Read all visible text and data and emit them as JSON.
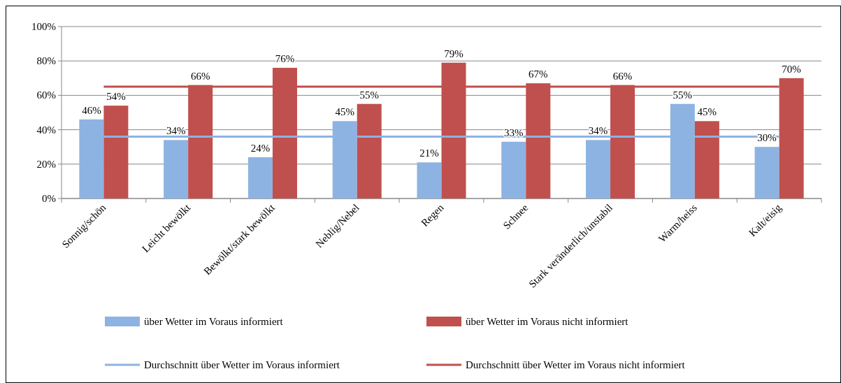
{
  "chart_data": {
    "type": "bar",
    "categories": [
      "Sonnig/schön",
      "Leicht bewölkt",
      "Bewölkt/stark bewölkt",
      "Neblig/Nebel",
      "Regen",
      "Schnee",
      "Stark veränderlich/unstabil",
      "Warm/heiss",
      "Kalt/eisig"
    ],
    "series": [
      {
        "name": "über Wetter im Voraus informiert",
        "color": "#8db3e2",
        "values": [
          46,
          34,
          24,
          45,
          21,
          33,
          34,
          55,
          30
        ],
        "value_labels": [
          "46%",
          "34%",
          "24%",
          "45%",
          "21%",
          "33%",
          "34%",
          "55%",
          "30%"
        ]
      },
      {
        "name": "über Wetter im Voraus nicht informiert",
        "color": "#c0504d",
        "values": [
          54,
          66,
          76,
          55,
          79,
          67,
          66,
          45,
          70
        ],
        "value_labels": [
          "54%",
          "66%",
          "76%",
          "55%",
          "79%",
          "67%",
          "66%",
          "45%",
          "70%"
        ]
      },
      {
        "name": "Durchschnitt über Wetter im Voraus informiert",
        "type": "line",
        "color": "#8db3e2",
        "values": [
          36,
          36,
          36,
          36,
          36,
          36,
          36,
          36,
          36
        ]
      },
      {
        "name": "Durchschnitt über Wetter im Voraus nicht informiert",
        "type": "line",
        "color": "#c0504d",
        "values": [
          65,
          65,
          65,
          65,
          65,
          65,
          65,
          65,
          65
        ]
      }
    ],
    "ylim": [
      0,
      100
    ],
    "yticks": [
      {
        "value": 0,
        "label": "0%"
      },
      {
        "value": 20,
        "label": "20%"
      },
      {
        "value": 40,
        "label": "40%"
      },
      {
        "value": 60,
        "label": "60%"
      },
      {
        "value": 80,
        "label": "80%"
      },
      {
        "value": 100,
        "label": "100%"
      }
    ],
    "grid": "y",
    "legend": "bottom"
  }
}
